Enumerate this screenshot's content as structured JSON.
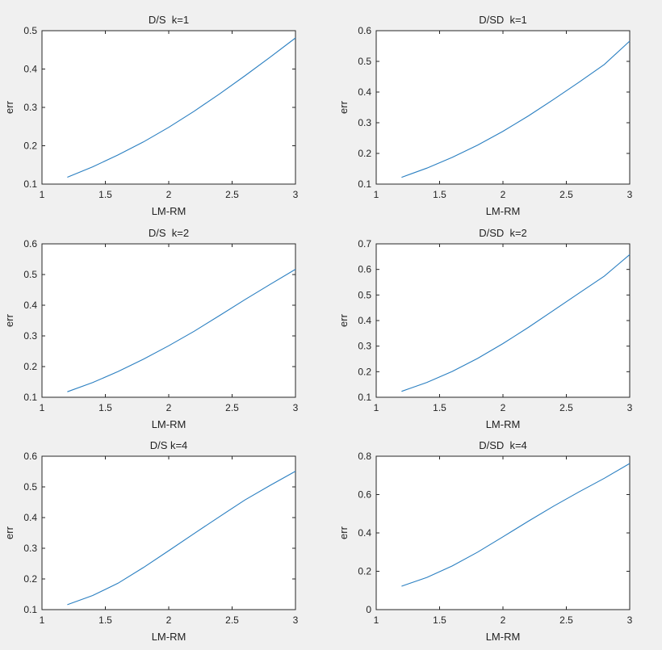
{
  "figure": {
    "background": "#f0f0f0",
    "line_color": "#2a7fc1"
  },
  "chart_data": [
    {
      "type": "line",
      "title": "D/S  k=1",
      "xlabel": "LM-RM",
      "ylabel": "err",
      "xlim": [
        1,
        3
      ],
      "ylim": [
        0.1,
        0.5
      ],
      "xticks": [
        1,
        1.5,
        2,
        2.5,
        3
      ],
      "yticks": [
        0.1,
        0.2,
        0.3,
        0.4,
        0.5
      ],
      "xtick_labels": [
        "1",
        "1.5",
        "2",
        "2.5",
        "3"
      ],
      "ytick_labels": [
        "0.1",
        "0.2",
        "0.3",
        "0.4",
        "0.5"
      ],
      "x": [
        1.2,
        1.4,
        1.6,
        1.8,
        2.0,
        2.2,
        2.4,
        2.6,
        2.8,
        3.0
      ],
      "y": [
        0.118,
        0.145,
        0.176,
        0.21,
        0.248,
        0.29,
        0.335,
        0.382,
        0.431,
        0.481
      ]
    },
    {
      "type": "line",
      "title": "D/SD  k=1",
      "xlabel": "LM-RM",
      "ylabel": "err",
      "xlim": [
        1,
        3
      ],
      "ylim": [
        0.1,
        0.6
      ],
      "xticks": [
        1,
        1.5,
        2,
        2.5,
        3
      ],
      "yticks": [
        0.1,
        0.2,
        0.3,
        0.4,
        0.5,
        0.6
      ],
      "xtick_labels": [
        "1",
        "1.5",
        "2",
        "2.5",
        "3"
      ],
      "ytick_labels": [
        "0.1",
        "0.2",
        "0.3",
        "0.4",
        "0.5",
        "0.6"
      ],
      "x": [
        1.2,
        1.4,
        1.6,
        1.8,
        2.0,
        2.2,
        2.4,
        2.6,
        2.8,
        3.0
      ],
      "y": [
        0.122,
        0.152,
        0.187,
        0.227,
        0.272,
        0.322,
        0.376,
        0.432,
        0.49,
        0.566
      ]
    },
    {
      "type": "line",
      "title": "D/S  k=2",
      "xlabel": "LM-RM",
      "ylabel": "err",
      "xlim": [
        1,
        3
      ],
      "ylim": [
        0.1,
        0.6
      ],
      "xticks": [
        1,
        1.5,
        2,
        2.5,
        3
      ],
      "yticks": [
        0.1,
        0.2,
        0.3,
        0.4,
        0.5,
        0.6
      ],
      "xtick_labels": [
        "1",
        "1.5",
        "2",
        "2.5",
        "3"
      ],
      "ytick_labels": [
        "0.1",
        "0.2",
        "0.3",
        "0.4",
        "0.5",
        "0.6"
      ],
      "x": [
        1.2,
        1.4,
        1.6,
        1.8,
        2.0,
        2.2,
        2.4,
        2.6,
        2.8,
        3.0
      ],
      "y": [
        0.118,
        0.148,
        0.184,
        0.224,
        0.268,
        0.315,
        0.366,
        0.418,
        0.468,
        0.517
      ]
    },
    {
      "type": "line",
      "title": "D/SD  k=2",
      "xlabel": "LM-RM",
      "ylabel": "err",
      "xlim": [
        1,
        3
      ],
      "ylim": [
        0.1,
        0.7
      ],
      "xticks": [
        1,
        1.5,
        2,
        2.5,
        3
      ],
      "yticks": [
        0.1,
        0.2,
        0.3,
        0.4,
        0.5,
        0.6,
        0.7
      ],
      "xtick_labels": [
        "1",
        "1.5",
        "2",
        "2.5",
        "3"
      ],
      "ytick_labels": [
        "0.1",
        "0.2",
        "0.3",
        "0.4",
        "0.5",
        "0.6",
        "0.7"
      ],
      "x": [
        1.2,
        1.4,
        1.6,
        1.8,
        2.0,
        2.2,
        2.4,
        2.6,
        2.8,
        3.0
      ],
      "y": [
        0.123,
        0.158,
        0.201,
        0.252,
        0.31,
        0.373,
        0.44,
        0.507,
        0.574,
        0.658
      ]
    },
    {
      "type": "line",
      "title": "D/S k=4",
      "xlabel": "LM-RM",
      "ylabel": "err",
      "xlim": [
        1,
        3
      ],
      "ylim": [
        0.1,
        0.6
      ],
      "xticks": [
        1,
        1.5,
        2,
        2.5,
        3
      ],
      "yticks": [
        0.1,
        0.2,
        0.3,
        0.4,
        0.5,
        0.6
      ],
      "xtick_labels": [
        "1",
        "1.5",
        "2",
        "2.5",
        "3"
      ],
      "ytick_labels": [
        "0.1",
        "0.2",
        "0.3",
        "0.4",
        "0.5",
        "0.6"
      ],
      "x": [
        1.2,
        1.4,
        1.6,
        1.8,
        2.0,
        2.2,
        2.4,
        2.6,
        2.8,
        3.0
      ],
      "y": [
        0.116,
        0.146,
        0.186,
        0.237,
        0.292,
        0.348,
        0.403,
        0.457,
        0.505,
        0.551
      ]
    },
    {
      "type": "line",
      "title": "D/SD  k=4",
      "xlabel": "LM-RM",
      "ylabel": "err",
      "xlim": [
        1,
        3
      ],
      "ylim": [
        0,
        0.8
      ],
      "xticks": [
        1,
        1.5,
        2,
        2.5,
        3
      ],
      "yticks": [
        0,
        0.2,
        0.4,
        0.6,
        0.8
      ],
      "xtick_labels": [
        "1",
        "1.5",
        "2",
        "2.5",
        "3"
      ],
      "ytick_labels": [
        "0",
        "0.2",
        "0.4",
        "0.6",
        "0.8"
      ],
      "x": [
        1.2,
        1.4,
        1.6,
        1.8,
        2.0,
        2.2,
        2.4,
        2.6,
        2.8,
        3.0
      ],
      "y": [
        0.122,
        0.168,
        0.228,
        0.3,
        0.38,
        0.461,
        0.54,
        0.614,
        0.685,
        0.762
      ]
    }
  ]
}
